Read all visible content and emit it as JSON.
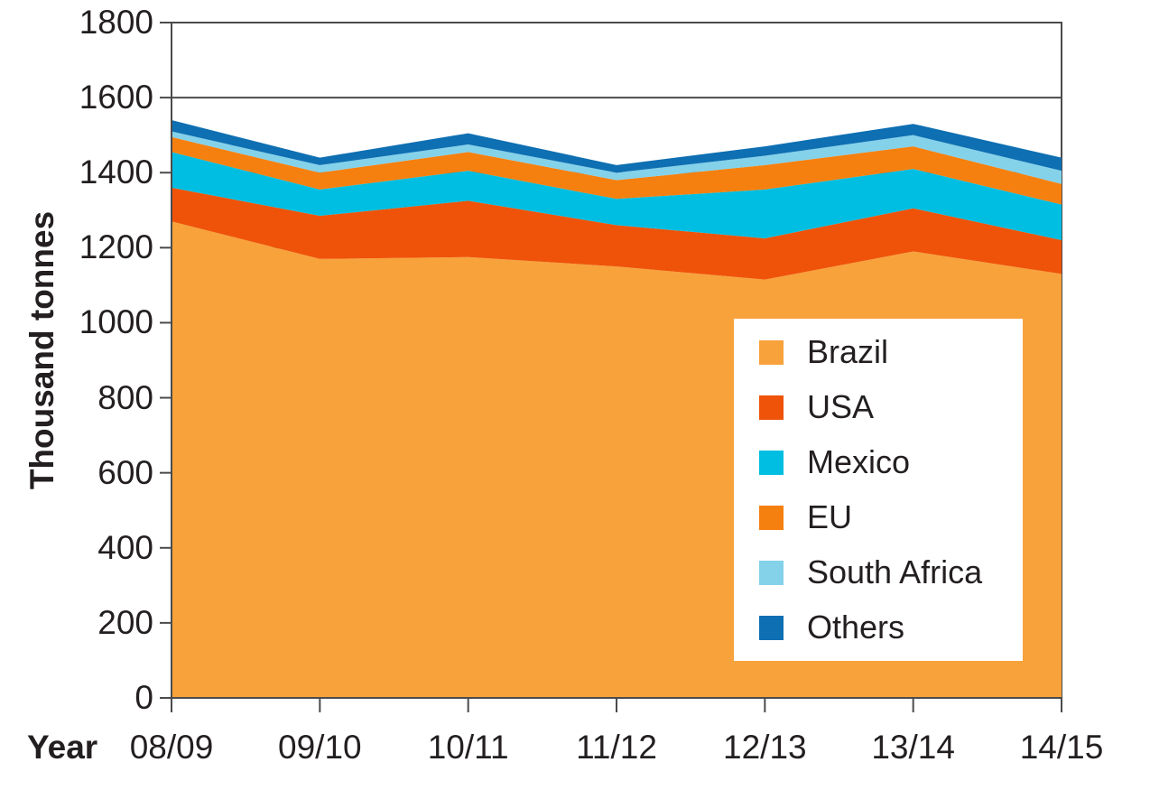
{
  "chart_data": {
    "type": "area",
    "stacked": true,
    "title": "",
    "xlabel": "Year",
    "ylabel": "Thousand tonnes",
    "categories": [
      "08/09",
      "09/10",
      "10/11",
      "11/12",
      "12/13",
      "13/14",
      "14/15"
    ],
    "series": [
      {
        "name": "Brazil",
        "color": "#F8A23C",
        "values": [
          1270,
          1170,
          1175,
          1150,
          1115,
          1190,
          1130
        ]
      },
      {
        "name": "USA",
        "color": "#EF5309",
        "values": [
          90,
          115,
          150,
          110,
          110,
          115,
          90
        ]
      },
      {
        "name": "Mexico",
        "color": "#00BEE1",
        "values": [
          95,
          70,
          80,
          70,
          130,
          105,
          95
        ]
      },
      {
        "name": "EU",
        "color": "#F5800F",
        "values": [
          40,
          45,
          50,
          50,
          65,
          60,
          55
        ]
      },
      {
        "name": "South Africa",
        "color": "#84D1EA",
        "values": [
          15,
          20,
          20,
          20,
          25,
          30,
          35
        ]
      },
      {
        "name": "Others",
        "color": "#0E6FB2",
        "values": [
          30,
          20,
          30,
          20,
          25,
          30,
          35
        ]
      }
    ],
    "totals_by_year": [
      1540,
      1440,
      1505,
      1420,
      1470,
      1530,
      1440
    ],
    "ylim": [
      0,
      1800
    ],
    "yticks": [
      0,
      200,
      400,
      600,
      800,
      1000,
      1200,
      1400,
      1600,
      1800
    ],
    "grid": "horizontal-200-step-behind-areas",
    "legend_position": "inside-right",
    "axis_color": "#4B4B4D",
    "text_color": "#231F20"
  }
}
